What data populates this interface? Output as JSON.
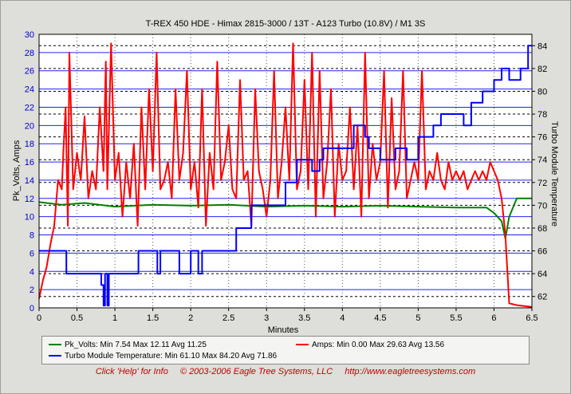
{
  "chart_data": {
    "type": "line",
    "title": "T-REX 450 HDE - Himax 2815-3000 / 13T - A123 Turbo (10.8V) / M1 3S",
    "xlabel": "Minutes",
    "ylabel": "Pk_Volts, Amps",
    "y2label": "Turbo Module Temperature",
    "xlim": [
      0,
      6.5
    ],
    "ylim": [
      0,
      30
    ],
    "y2lim": [
      61,
      85
    ],
    "x_ticks": [
      0,
      0.5,
      1,
      1.5,
      2,
      2.5,
      3,
      3.5,
      4,
      4.5,
      5,
      5.5,
      6,
      6.5
    ],
    "y_ticks": [
      0,
      2,
      4,
      6,
      8,
      10,
      12,
      14,
      16,
      18,
      20,
      22,
      24,
      26,
      28,
      30
    ],
    "y2_ticks": [
      62,
      64,
      66,
      68,
      70,
      72,
      74,
      76,
      78,
      80,
      82,
      84
    ],
    "grid": true,
    "series": [
      {
        "name": "Pk_Volts:",
        "stats": "Min 7.54 Max 12.11 Avg 11.25",
        "color": "#008000",
        "axis": "left",
        "x": [
          0,
          0.3,
          0.6,
          1.0,
          1.5,
          2.0,
          2.5,
          3.0,
          3.5,
          4.0,
          4.5,
          5.0,
          5.5,
          5.9,
          6.0,
          6.1,
          6.15,
          6.2,
          6.3,
          6.5
        ],
        "y": [
          11.6,
          11.3,
          11.5,
          11.1,
          11.3,
          11.2,
          11.3,
          11.1,
          11.2,
          11.1,
          11.2,
          11.1,
          11.0,
          11.0,
          10.4,
          9.5,
          7.6,
          10.0,
          12.0,
          12.0
        ]
      },
      {
        "name": "Amps:",
        "stats": "Min 0.00 Max 29.63 Avg 13.56",
        "color": "#ff0000",
        "axis": "left",
        "x": [
          0,
          0.05,
          0.1,
          0.15,
          0.2,
          0.25,
          0.3,
          0.32,
          0.35,
          0.38,
          0.4,
          0.45,
          0.5,
          0.55,
          0.6,
          0.65,
          0.7,
          0.75,
          0.8,
          0.85,
          0.88,
          0.9,
          0.95,
          1.0,
          1.05,
          1.1,
          1.15,
          1.2,
          1.25,
          1.3,
          1.35,
          1.4,
          1.45,
          1.5,
          1.55,
          1.6,
          1.65,
          1.7,
          1.75,
          1.8,
          1.85,
          1.9,
          1.95,
          2.0,
          2.05,
          2.1,
          2.15,
          2.2,
          2.25,
          2.3,
          2.35,
          2.4,
          2.45,
          2.5,
          2.55,
          2.6,
          2.65,
          2.7,
          2.75,
          2.8,
          2.85,
          2.9,
          2.95,
          3.0,
          3.05,
          3.1,
          3.15,
          3.2,
          3.25,
          3.3,
          3.35,
          3.4,
          3.45,
          3.5,
          3.55,
          3.6,
          3.65,
          3.7,
          3.75,
          3.8,
          3.85,
          3.9,
          3.95,
          4.0,
          4.05,
          4.1,
          4.15,
          4.2,
          4.25,
          4.3,
          4.35,
          4.4,
          4.45,
          4.5,
          4.55,
          4.6,
          4.65,
          4.7,
          4.75,
          4.8,
          4.85,
          4.9,
          4.95,
          5.0,
          5.05,
          5.1,
          5.15,
          5.2,
          5.25,
          5.3,
          5.35,
          5.4,
          5.45,
          5.5,
          5.55,
          5.6,
          5.65,
          5.7,
          5.75,
          5.8,
          5.85,
          5.9,
          5.95,
          6.0,
          6.05,
          6.1,
          6.15,
          6.17,
          6.2,
          6.3,
          6.4,
          6.5
        ],
        "y": [
          1.0,
          3.0,
          4.5,
          7.0,
          9.0,
          14.0,
          13.0,
          17.0,
          22.0,
          9.0,
          28.0,
          13.0,
          17.0,
          14.0,
          21.0,
          12.0,
          15.0,
          13.0,
          22.0,
          15.0,
          27.0,
          13.0,
          29.0,
          14.0,
          17.0,
          10.0,
          16.0,
          12.0,
          18.0,
          9.0,
          22.0,
          13.0,
          24.0,
          15.0,
          28.0,
          13.0,
          14.0,
          16.0,
          12.0,
          24.0,
          14.0,
          17.0,
          26.0,
          13.0,
          16.0,
          11.0,
          24.0,
          9.0,
          17.0,
          13.0,
          27.0,
          14.0,
          16.0,
          20.0,
          13.0,
          12.0,
          25.0,
          14.0,
          15.0,
          9.0,
          24.0,
          15.0,
          13.0,
          10.0,
          14.0,
          26.0,
          12.0,
          16.0,
          22.0,
          14.0,
          29.0,
          13.0,
          15.0,
          25.0,
          13.0,
          28.0,
          10.0,
          26.0,
          12.0,
          16.0,
          24.0,
          10.0,
          18.0,
          14.0,
          15.0,
          22.0,
          13.0,
          20.0,
          10.0,
          28.0,
          12.0,
          18.0,
          14.0,
          16.0,
          26.0,
          11.0,
          23.0,
          13.0,
          15.0,
          26.0,
          12.0,
          14.0,
          16.0,
          14.0,
          26.0,
          13.0,
          15.0,
          14.0,
          17.0,
          14.0,
          13.0,
          16.0,
          14.0,
          15.0,
          14.0,
          15.0,
          13.0,
          14.0,
          15.0,
          14.0,
          15.0,
          14.0,
          16.0,
          15.0,
          14.0,
          12.0,
          8.0,
          5.0,
          0.5,
          0.3,
          0.2,
          0.1
        ]
      },
      {
        "name": "Turbo Module Temperature:",
        "stats": "Min 61.10 Max 84.20 Avg 71.86",
        "color": "#0000ff",
        "axis": "right",
        "x": [
          0,
          0.35,
          0.36,
          0.8,
          0.82,
          0.85,
          0.87,
          0.9,
          0.92,
          0.95,
          1.1,
          1.3,
          1.31,
          1.55,
          1.56,
          1.6,
          1.65,
          1.8,
          1.85,
          2.0,
          2.05,
          2.1,
          2.15,
          2.55,
          2.6,
          2.75,
          2.8,
          3.2,
          3.25,
          3.35,
          3.4,
          3.5,
          3.6,
          3.7,
          3.75,
          3.85,
          4.1,
          4.15,
          4.2,
          4.3,
          4.35,
          4.45,
          4.5,
          4.6,
          4.7,
          4.8,
          4.85,
          5.0,
          5.05,
          5.2,
          5.3,
          5.35,
          5.55,
          5.6,
          5.7,
          5.75,
          5.85,
          5.95,
          6.0,
          6.05,
          6.1,
          6.15,
          6.2,
          6.3,
          6.35,
          6.4,
          6.45,
          6.5
        ],
        "y": [
          66,
          66,
          64,
          64,
          63,
          61.2,
          64,
          61.2,
          64,
          64,
          64,
          64,
          66,
          66,
          64,
          66,
          66,
          66,
          64,
          66,
          66,
          64,
          66,
          66,
          68,
          68,
          70,
          70,
          72,
          72,
          74,
          74,
          73,
          74,
          75,
          75,
          75,
          77,
          77,
          76,
          75,
          75,
          74,
          74,
          75,
          75,
          74,
          76,
          76,
          77,
          78,
          78,
          78,
          77,
          79,
          79,
          80,
          80,
          81,
          81,
          82,
          82,
          81,
          81,
          82,
          82,
          84,
          84
        ]
      }
    ]
  },
  "footer": {
    "help": "Click 'Help' for Info",
    "copyright": "© 2003-2006 Eagle Tree Systems, LLC",
    "url": "http://www.eagletreesystems.com"
  }
}
